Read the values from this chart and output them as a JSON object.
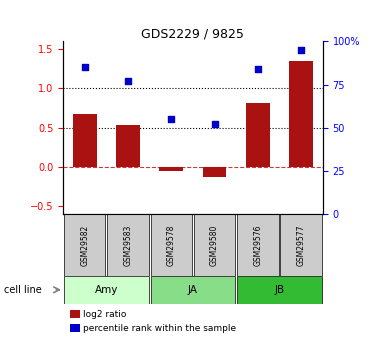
{
  "title": "GDS2229 / 9825",
  "samples": [
    "GSM29582",
    "GSM29583",
    "GSM29578",
    "GSM29580",
    "GSM29576",
    "GSM29577"
  ],
  "log2_ratio": [
    0.68,
    0.53,
    -0.05,
    -0.13,
    0.82,
    1.35
  ],
  "percentile_rank": [
    85,
    77,
    55,
    52,
    84,
    95
  ],
  "cell_lines": [
    {
      "name": "Amy",
      "color": "#ccffcc",
      "span": [
        0,
        2
      ]
    },
    {
      "name": "JA",
      "color": "#88dd88",
      "span": [
        2,
        4
      ]
    },
    {
      "name": "JB",
      "color": "#33bb33",
      "span": [
        4,
        6
      ]
    }
  ],
  "bar_color": "#aa1111",
  "dot_color": "#0000cc",
  "ylim_left": [
    -0.6,
    1.6
  ],
  "ylim_right": [
    0,
    100
  ],
  "yticks_left": [
    -0.5,
    0.0,
    0.5,
    1.0,
    1.5
  ],
  "yticks_right": [
    0,
    25,
    50,
    75,
    100
  ],
  "hline_dotted": [
    0.5,
    1.0
  ],
  "hline_dash": 0.0,
  "legend_labels": [
    "log2 ratio",
    "percentile rank within the sample"
  ],
  "sample_box_color": "#cccccc",
  "cell_line_label": "cell line"
}
